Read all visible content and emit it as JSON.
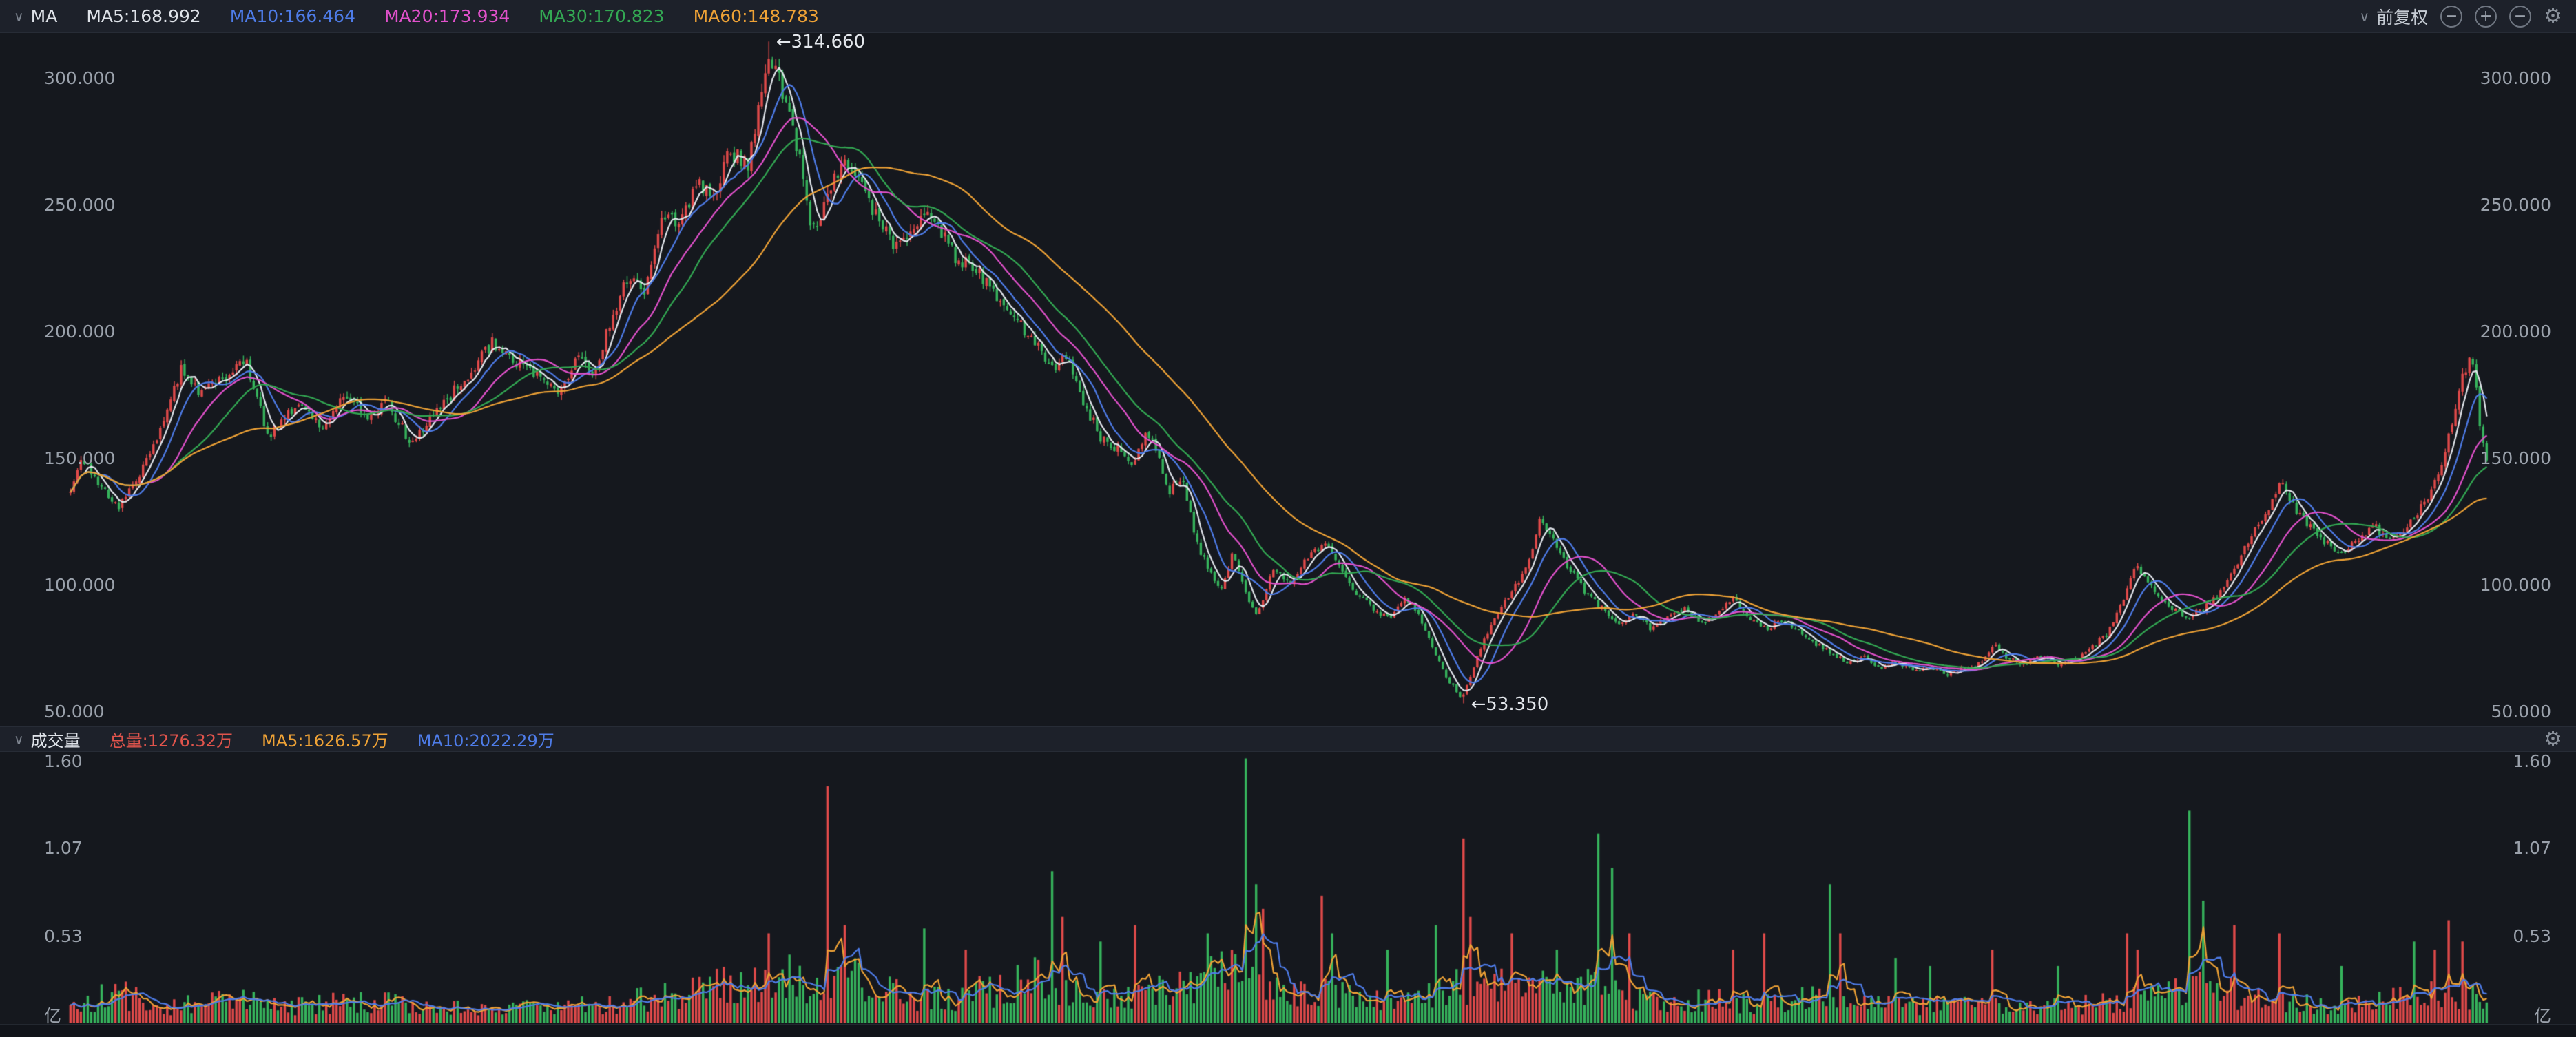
{
  "icons": {
    "chevron_down": "∨",
    "gear": "⚙",
    "zoom_out": "−",
    "zoom_in": "+",
    "reset_zoom": "−"
  },
  "toolbar": {
    "indicator_label": "MA",
    "ma_legend": [
      {
        "label": "MA5:168.992",
        "color": "#dfe3e9"
      },
      {
        "label": "MA10:166.464",
        "color": "#4e7ce8"
      },
      {
        "label": "MA20:173.934",
        "color": "#e151cb"
      },
      {
        "label": "MA30:170.823",
        "color": "#33a853"
      },
      {
        "label": "MA60:148.783",
        "color": "#eea236"
      }
    ],
    "adjust_label": "前复权"
  },
  "price_panel": {
    "y_ticks_left": [
      "300.000",
      "250.000",
      "200.000",
      "150.000",
      "100.000",
      "50.000"
    ],
    "y_ticks_right": [
      "300.000",
      "250.000",
      "200.000",
      "150.000",
      "100.000",
      "50.000"
    ],
    "tick_values": [
      300,
      250,
      200,
      150,
      100,
      50
    ],
    "annotation_high": "←314.660",
    "annotation_low": "←53.350",
    "high_value": 314.66,
    "low_value": 53.35
  },
  "volume_panel": {
    "title": "成交量",
    "legend": [
      {
        "label": "总量:1276.32万",
        "color": "#e0544c"
      },
      {
        "label": "MA5:1626.57万",
        "color": "#eea236"
      },
      {
        "label": "MA10:2022.29万",
        "color": "#4e7ce8"
      }
    ],
    "y_ticks": [
      "1.60",
      "1.07",
      "0.53"
    ],
    "tick_values": [
      1.6,
      1.07,
      0.53
    ],
    "unit_label": "亿",
    "last_volume": 0.1276
  },
  "chart_data": {
    "type": "candlestick",
    "title": "",
    "ylim": [
      44,
      318
    ],
    "volume_ylim": [
      0,
      1.66
    ],
    "candle_count": 700,
    "ma_periods": [
      5,
      10,
      20,
      30,
      60
    ],
    "vol_ma_periods": [
      5,
      10
    ],
    "colors": {
      "up": "#e04a4a",
      "down": "#36b35c",
      "ma": [
        "#e2e6ec",
        "#4e7ce8",
        "#e151cb",
        "#33a853",
        "#eea236"
      ],
      "vol_ma": [
        "#eea236",
        "#4e7ce8"
      ],
      "background": "#15181e",
      "axis_text": "#9aa1ab"
    },
    "price_keypoints": [
      [
        0,
        138
      ],
      [
        0.005,
        150
      ],
      [
        0.012,
        140
      ],
      [
        0.02,
        131
      ],
      [
        0.029,
        145
      ],
      [
        0.036,
        158
      ],
      [
        0.046,
        186
      ],
      [
        0.054,
        176
      ],
      [
        0.063,
        182
      ],
      [
        0.073,
        188
      ],
      [
        0.082,
        158
      ],
      [
        0.094,
        172
      ],
      [
        0.104,
        162
      ],
      [
        0.114,
        176
      ],
      [
        0.122,
        166
      ],
      [
        0.131,
        172
      ],
      [
        0.141,
        156
      ],
      [
        0.153,
        170
      ],
      [
        0.165,
        184
      ],
      [
        0.175,
        196
      ],
      [
        0.183,
        189
      ],
      [
        0.192,
        183
      ],
      [
        0.202,
        176
      ],
      [
        0.21,
        189
      ],
      [
        0.217,
        183
      ],
      [
        0.224,
        206
      ],
      [
        0.231,
        222
      ],
      [
        0.238,
        215
      ],
      [
        0.245,
        248
      ],
      [
        0.252,
        240
      ],
      [
        0.259,
        260
      ],
      [
        0.266,
        252
      ],
      [
        0.273,
        272
      ],
      [
        0.28,
        265
      ],
      [
        0.285,
        290
      ],
      [
        0.289,
        308
      ],
      [
        0.295,
        295
      ],
      [
        0.301,
        272
      ],
      [
        0.307,
        238
      ],
      [
        0.314,
        255
      ],
      [
        0.32,
        268
      ],
      [
        0.327,
        257
      ],
      [
        0.334,
        246
      ],
      [
        0.341,
        232
      ],
      [
        0.349,
        242
      ],
      [
        0.356,
        248
      ],
      [
        0.365,
        231
      ],
      [
        0.375,
        224
      ],
      [
        0.384,
        214
      ],
      [
        0.392,
        204
      ],
      [
        0.4,
        195
      ],
      [
        0.407,
        185
      ],
      [
        0.413,
        191
      ],
      [
        0.42,
        171
      ],
      [
        0.426,
        159
      ],
      [
        0.434,
        153
      ],
      [
        0.44,
        147
      ],
      [
        0.445,
        162
      ],
      [
        0.45,
        151
      ],
      [
        0.455,
        137
      ],
      [
        0.46,
        143
      ],
      [
        0.466,
        117
      ],
      [
        0.471,
        106
      ],
      [
        0.476,
        99
      ],
      [
        0.481,
        112
      ],
      [
        0.487,
        95
      ],
      [
        0.491,
        87
      ],
      [
        0.498,
        107
      ],
      [
        0.505,
        101
      ],
      [
        0.512,
        111
      ],
      [
        0.519,
        117
      ],
      [
        0.525,
        109
      ],
      [
        0.532,
        97
      ],
      [
        0.539,
        91
      ],
      [
        0.546,
        87
      ],
      [
        0.553,
        95
      ],
      [
        0.558,
        89
      ],
      [
        0.563,
        77
      ],
      [
        0.57,
        63
      ],
      [
        0.576,
        55
      ],
      [
        0.582,
        71
      ],
      [
        0.589,
        87
      ],
      [
        0.596,
        97
      ],
      [
        0.603,
        107
      ],
      [
        0.608,
        127
      ],
      [
        0.614,
        117
      ],
      [
        0.62,
        107
      ],
      [
        0.627,
        97
      ],
      [
        0.634,
        91
      ],
      [
        0.641,
        85
      ],
      [
        0.648,
        89
      ],
      [
        0.654,
        83
      ],
      [
        0.661,
        87
      ],
      [
        0.668,
        91
      ],
      [
        0.675,
        85
      ],
      [
        0.682,
        89
      ],
      [
        0.688,
        95
      ],
      [
        0.695,
        87
      ],
      [
        0.702,
        83
      ],
      [
        0.709,
        87
      ],
      [
        0.716,
        81
      ],
      [
        0.722,
        77
      ],
      [
        0.729,
        73
      ],
      [
        0.736,
        69
      ],
      [
        0.743,
        72
      ],
      [
        0.749,
        67
      ],
      [
        0.756,
        70
      ],
      [
        0.763,
        66
      ],
      [
        0.77,
        68
      ],
      [
        0.777,
        65
      ],
      [
        0.783,
        67
      ],
      [
        0.79,
        69
      ],
      [
        0.796,
        77
      ],
      [
        0.802,
        71
      ],
      [
        0.809,
        69
      ],
      [
        0.816,
        72
      ],
      [
        0.823,
        69
      ],
      [
        0.83,
        71
      ],
      [
        0.836,
        75
      ],
      [
        0.843,
        81
      ],
      [
        0.85,
        95
      ],
      [
        0.855,
        108
      ],
      [
        0.862,
        99
      ],
      [
        0.869,
        91
      ],
      [
        0.876,
        87
      ],
      [
        0.883,
        91
      ],
      [
        0.889,
        97
      ],
      [
        0.896,
        107
      ],
      [
        0.903,
        121
      ],
      [
        0.91,
        131
      ],
      [
        0.915,
        140
      ],
      [
        0.92,
        131
      ],
      [
        0.927,
        123
      ],
      [
        0.933,
        117
      ],
      [
        0.94,
        113
      ],
      [
        0.947,
        119
      ],
      [
        0.954,
        123
      ],
      [
        0.959,
        117
      ],
      [
        0.965,
        121
      ],
      [
        0.97,
        127
      ],
      [
        0.975,
        133
      ],
      [
        0.981,
        147
      ],
      [
        0.986,
        164
      ],
      [
        0.99,
        183
      ],
      [
        0.994,
        190
      ],
      [
        0.998,
        158
      ],
      [
        1,
        151
      ]
    ],
    "volume_keypoints": [
      [
        0,
        0.12
      ],
      [
        0.02,
        0.18
      ],
      [
        0.04,
        0.1
      ],
      [
        0.07,
        0.16
      ],
      [
        0.09,
        0.1
      ],
      [
        0.12,
        0.14
      ],
      [
        0.15,
        0.1
      ],
      [
        0.18,
        0.08
      ],
      [
        0.2,
        0.12
      ],
      [
        0.22,
        0.1
      ],
      [
        0.24,
        0.16
      ],
      [
        0.26,
        0.2
      ],
      [
        0.28,
        0.26
      ],
      [
        0.3,
        0.22
      ],
      [
        0.32,
        0.3
      ],
      [
        0.34,
        0.18
      ],
      [
        0.36,
        0.15
      ],
      [
        0.38,
        0.2
      ],
      [
        0.4,
        0.28
      ],
      [
        0.42,
        0.18
      ],
      [
        0.44,
        0.16
      ],
      [
        0.46,
        0.22
      ],
      [
        0.48,
        0.3
      ],
      [
        0.5,
        0.22
      ],
      [
        0.52,
        0.2
      ],
      [
        0.54,
        0.14
      ],
      [
        0.56,
        0.18
      ],
      [
        0.58,
        0.25
      ],
      [
        0.6,
        0.2
      ],
      [
        0.62,
        0.24
      ],
      [
        0.64,
        0.18
      ],
      [
        0.66,
        0.12
      ],
      [
        0.68,
        0.14
      ],
      [
        0.7,
        0.12
      ],
      [
        0.72,
        0.16
      ],
      [
        0.74,
        0.12
      ],
      [
        0.76,
        0.1
      ],
      [
        0.78,
        0.12
      ],
      [
        0.8,
        0.1
      ],
      [
        0.82,
        0.1
      ],
      [
        0.84,
        0.12
      ],
      [
        0.86,
        0.16
      ],
      [
        0.88,
        0.22
      ],
      [
        0.9,
        0.16
      ],
      [
        0.92,
        0.12
      ],
      [
        0.94,
        0.12
      ],
      [
        0.96,
        0.14
      ],
      [
        0.98,
        0.2
      ],
      [
        1,
        0.13
      ]
    ],
    "volume_spikes": [
      [
        0.289,
        0.55
      ],
      [
        0.298,
        0.42
      ],
      [
        0.314,
        1.45
      ],
      [
        0.32,
        0.6
      ],
      [
        0.353,
        0.58
      ],
      [
        0.37,
        0.45
      ],
      [
        0.406,
        0.93
      ],
      [
        0.41,
        0.65
      ],
      [
        0.426,
        0.5
      ],
      [
        0.44,
        0.6
      ],
      [
        0.47,
        0.55
      ],
      [
        0.487,
        1.62
      ],
      [
        0.49,
        0.85
      ],
      [
        0.493,
        0.7
      ],
      [
        0.518,
        0.78
      ],
      [
        0.522,
        0.55
      ],
      [
        0.545,
        0.45
      ],
      [
        0.565,
        0.6
      ],
      [
        0.576,
        1.13
      ],
      [
        0.58,
        0.65
      ],
      [
        0.596,
        0.55
      ],
      [
        0.615,
        0.45
      ],
      [
        0.633,
        1.16
      ],
      [
        0.638,
        0.95
      ],
      [
        0.645,
        0.55
      ],
      [
        0.688,
        0.45
      ],
      [
        0.701,
        0.55
      ],
      [
        0.728,
        0.85
      ],
      [
        0.733,
        0.55
      ],
      [
        0.755,
        0.4
      ],
      [
        0.77,
        0.35
      ],
      [
        0.796,
        0.45
      ],
      [
        0.823,
        0.35
      ],
      [
        0.851,
        0.55
      ],
      [
        0.855,
        0.45
      ],
      [
        0.877,
        1.3
      ],
      [
        0.882,
        0.75
      ],
      [
        0.895,
        0.6
      ],
      [
        0.914,
        0.55
      ],
      [
        0.94,
        0.35
      ],
      [
        0.97,
        0.5
      ],
      [
        0.979,
        0.45
      ],
      [
        0.984,
        0.63
      ],
      [
        0.99,
        0.5
      ]
    ]
  }
}
